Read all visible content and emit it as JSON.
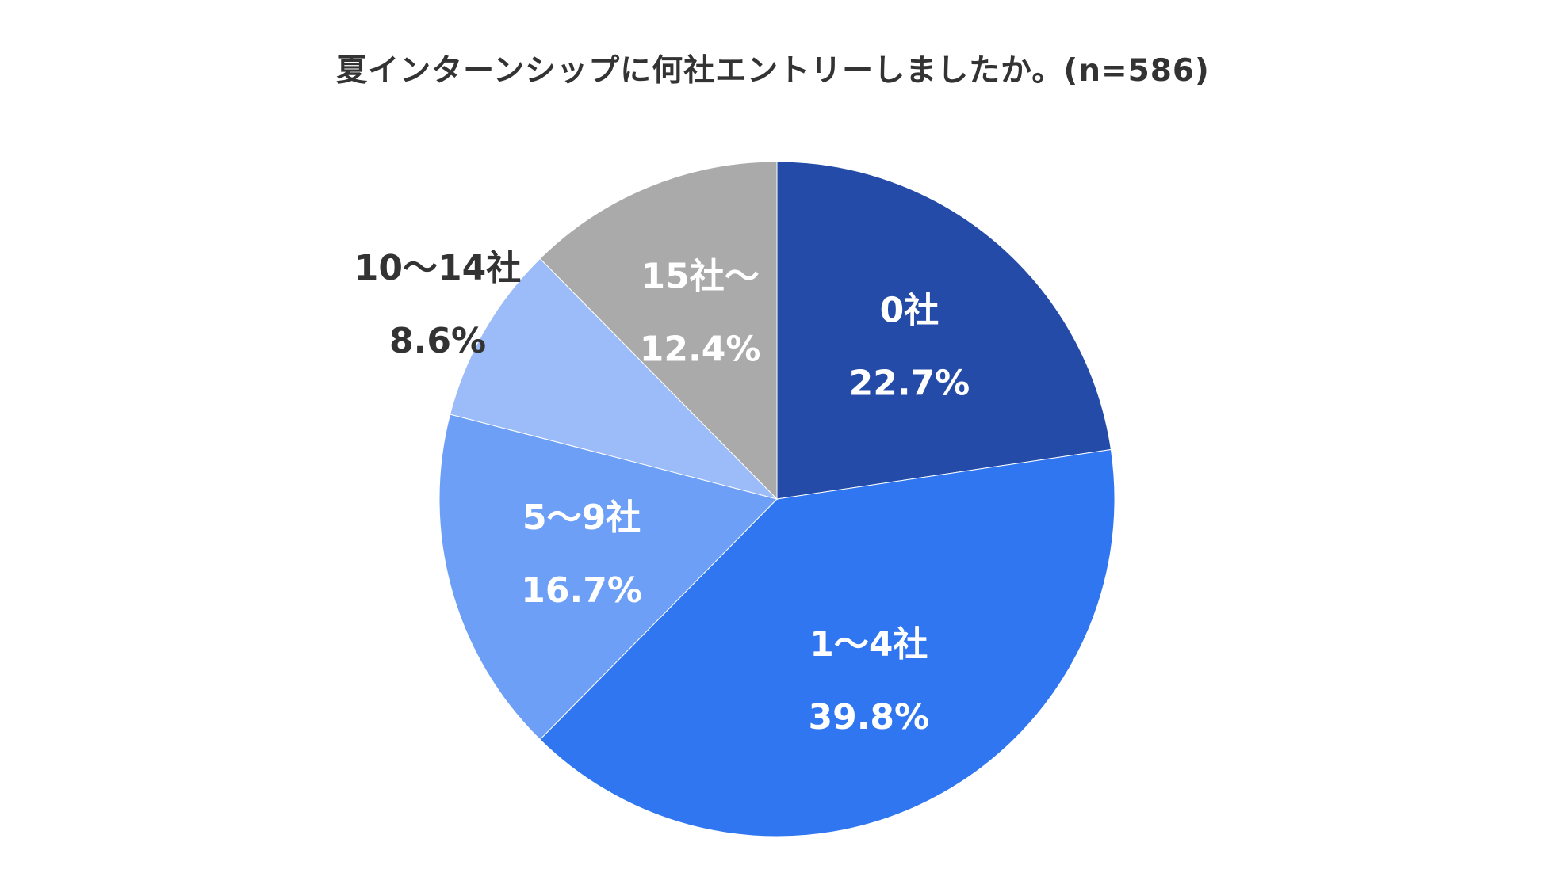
{
  "chart_data": {
    "type": "pie",
    "title": "夏インターンシップに何社エントリーしましたか。(n=586)",
    "start_angle_deg": 0,
    "direction": "clockwise",
    "slices": [
      {
        "label": "0社",
        "value": 22.7,
        "value_label": "22.7%",
        "color": "#244ba8",
        "label_color": "#ffffff",
        "label_position": "inside"
      },
      {
        "label": "1～4社",
        "value": 39.8,
        "value_label": "39.8%",
        "color": "#3076f0",
        "label_color": "#ffffff",
        "label_position": "inside"
      },
      {
        "label": "5～9社",
        "value": 16.7,
        "value_label": "16.7%",
        "color": "#6c9ff5",
        "label_color": "#ffffff",
        "label_position": "inside"
      },
      {
        "label": "10～14社",
        "value": 8.6,
        "value_label": "8.6%",
        "color": "#9bbcf8",
        "label_color": "#333333",
        "label_position": "outside"
      },
      {
        "label": "15社～",
        "value": 12.4,
        "value_label": "12.4%",
        "color": "#aaaaaa",
        "label_color": "#ffffff",
        "label_position": "inside"
      }
    ]
  }
}
